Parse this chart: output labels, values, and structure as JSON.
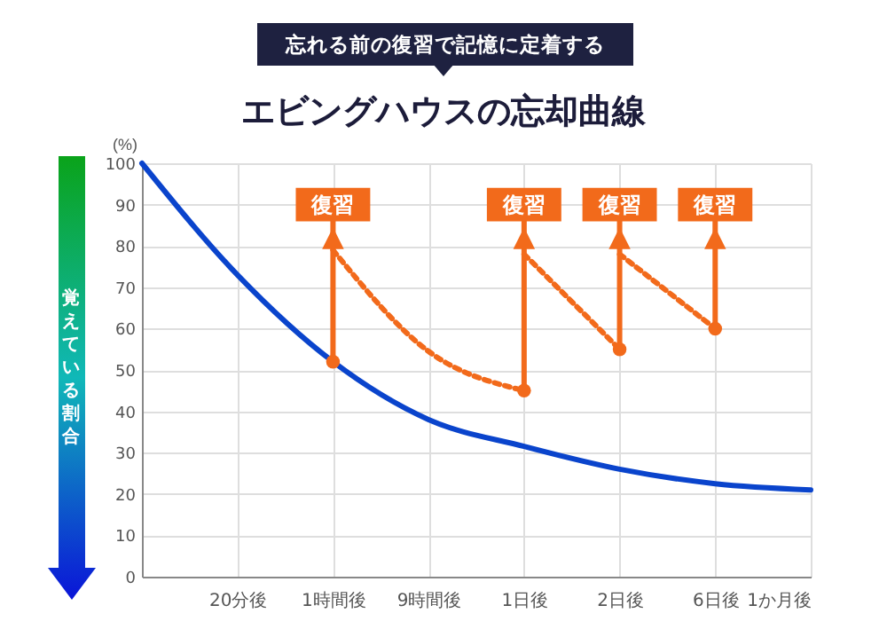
{
  "chart_data": {
    "type": "line",
    "title": "エビングハウスの忘却曲線",
    "subtitle": "忘れる前の復習で記憶に定着する",
    "ylabel": "覚えている割合",
    "categories": [
      null,
      "20分後",
      "1時間後",
      "9時間後",
      "1日後",
      "2日後",
      "6日後",
      "1か月後"
    ],
    "ylim": [
      0,
      100
    ],
    "yticks": [
      0,
      10,
      20,
      30,
      40,
      50,
      60,
      70,
      80,
      90,
      100
    ],
    "grid": true,
    "series": [
      {
        "color": "#0a44cc",
        "line_style": "solid",
        "values": [
          100,
          73,
          52,
          38,
          31.5,
          26,
          22.5,
          21
        ]
      },
      {
        "color": "#f26a1b",
        "line_style": "dashed",
        "values": [
          null,
          null,
          79,
          54.5,
          45,
          null,
          null,
          null
        ]
      },
      {
        "color": "#f26a1b",
        "line_style": "dashed",
        "values": [
          null,
          null,
          null,
          null,
          78,
          55,
          null,
          null
        ]
      },
      {
        "color": "#f26a1b",
        "line_style": "dashed",
        "values": [
          null,
          null,
          null,
          null,
          null,
          78,
          60,
          null
        ]
      }
    ],
    "annotations": [
      "(%)",
      {
        "text": "復習",
        "x": "1時間後",
        "y": 90
      },
      {
        "text": "復習",
        "x": "1日後",
        "y": 90
      },
      {
        "text": "復習",
        "x": "2日後",
        "y": 90
      },
      {
        "text": "復習",
        "x": "6日後",
        "y": 90
      }
    ]
  }
}
